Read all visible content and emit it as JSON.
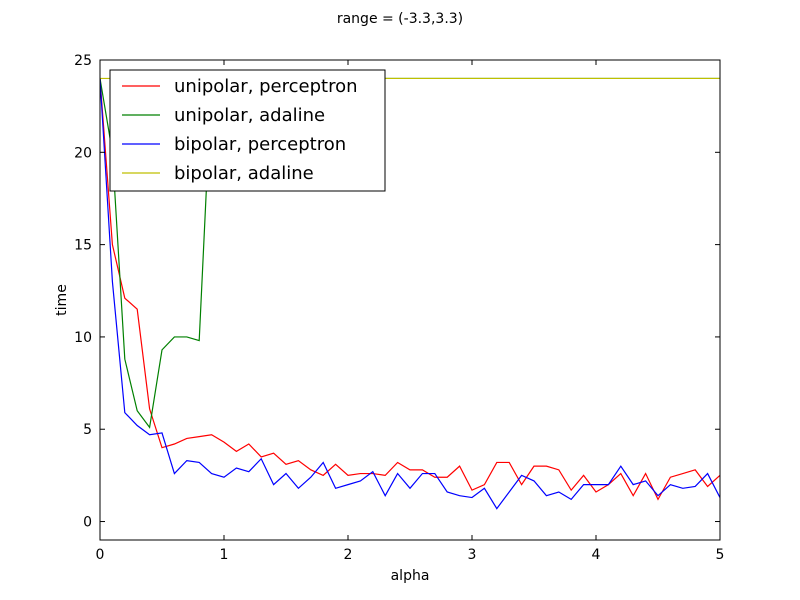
{
  "chart_data": {
    "type": "line",
    "title": "range = (-3.3,3.3)",
    "xlabel": "alpha",
    "ylabel": "time",
    "xlim": [
      0,
      5
    ],
    "ylim": [
      -1,
      25
    ],
    "x_ticks": [
      0,
      1,
      2,
      3,
      4,
      5
    ],
    "y_ticks": [
      0,
      5,
      10,
      15,
      20,
      25
    ],
    "grid": false,
    "legend_position": "top-left",
    "x": [
      0,
      0.1,
      0.2,
      0.3,
      0.4,
      0.5,
      0.6,
      0.7,
      0.8,
      0.9,
      1.0,
      1.1,
      1.2,
      1.3,
      1.4,
      1.5,
      1.6,
      1.7,
      1.8,
      1.9,
      2.0,
      2.1,
      2.2,
      2.3,
      2.4,
      2.5,
      2.6,
      2.7,
      2.8,
      2.9,
      3.0,
      3.1,
      3.2,
      3.3,
      3.4,
      3.5,
      3.6,
      3.7,
      3.8,
      3.9,
      4.0,
      4.1,
      4.2,
      4.3,
      4.4,
      4.5,
      4.6,
      4.7,
      4.8,
      4.9,
      5.0
    ],
    "series": [
      {
        "name": "unipolar, perceptron",
        "color": "#ff0000",
        "values": [
          24,
          15,
          12.1,
          11.5,
          6.1,
          4.0,
          4.2,
          4.5,
          4.6,
          4.7,
          4.3,
          3.8,
          4.2,
          3.5,
          3.7,
          3.1,
          3.3,
          2.8,
          2.5,
          3.1,
          2.5,
          2.6,
          2.6,
          2.5,
          3.2,
          2.8,
          2.8,
          2.4,
          2.4,
          3.0,
          1.7,
          2.0,
          3.2,
          3.2,
          2.0,
          3.0,
          3.0,
          2.8,
          1.7,
          2.5,
          1.6,
          2.0,
          2.6,
          1.4,
          2.6,
          1.2,
          2.4,
          2.6,
          2.8,
          1.9,
          2.5
        ]
      },
      {
        "name": "unipolar, adaline",
        "color": "#008000",
        "values": [
          24,
          20,
          8.8,
          6.0,
          5.1,
          9.3,
          10.0,
          10.0,
          9.8,
          24,
          24,
          24,
          24,
          24,
          24,
          24,
          24,
          24,
          24,
          24,
          24,
          24,
          24,
          24,
          24,
          24,
          24,
          24,
          24,
          24,
          24,
          24,
          24,
          24,
          24,
          24,
          24,
          24,
          24,
          24,
          24,
          24,
          24,
          24,
          24,
          24,
          24,
          24,
          24,
          24,
          24
        ]
      },
      {
        "name": "bipolar, perceptron",
        "color": "#0000ff",
        "values": [
          24,
          13,
          5.9,
          5.2,
          4.7,
          4.8,
          2.6,
          3.3,
          3.2,
          2.6,
          2.4,
          2.9,
          2.7,
          3.4,
          2.0,
          2.6,
          1.8,
          2.4,
          3.2,
          1.8,
          2.0,
          2.2,
          2.7,
          1.4,
          2.6,
          1.8,
          2.6,
          2.6,
          1.6,
          1.4,
          1.3,
          1.8,
          0.7,
          1.6,
          2.5,
          2.2,
          1.4,
          1.6,
          1.2,
          2.0,
          2.0,
          2.0,
          3.0,
          2.0,
          2.2,
          1.4,
          2.0,
          1.8,
          1.9,
          2.6,
          1.3
        ]
      },
      {
        "name": "bipolar, adaline",
        "color": "#bfbf00",
        "values": [
          24,
          24,
          24,
          24,
          24,
          24,
          24,
          24,
          24,
          24,
          24,
          24,
          24,
          24,
          24,
          24,
          24,
          24,
          24,
          24,
          24,
          24,
          24,
          24,
          24,
          24,
          24,
          24,
          24,
          24,
          24,
          24,
          24,
          24,
          24,
          24,
          24,
          24,
          24,
          24,
          24,
          24,
          24,
          24,
          24,
          24,
          24,
          24,
          24,
          24,
          24
        ]
      }
    ]
  }
}
